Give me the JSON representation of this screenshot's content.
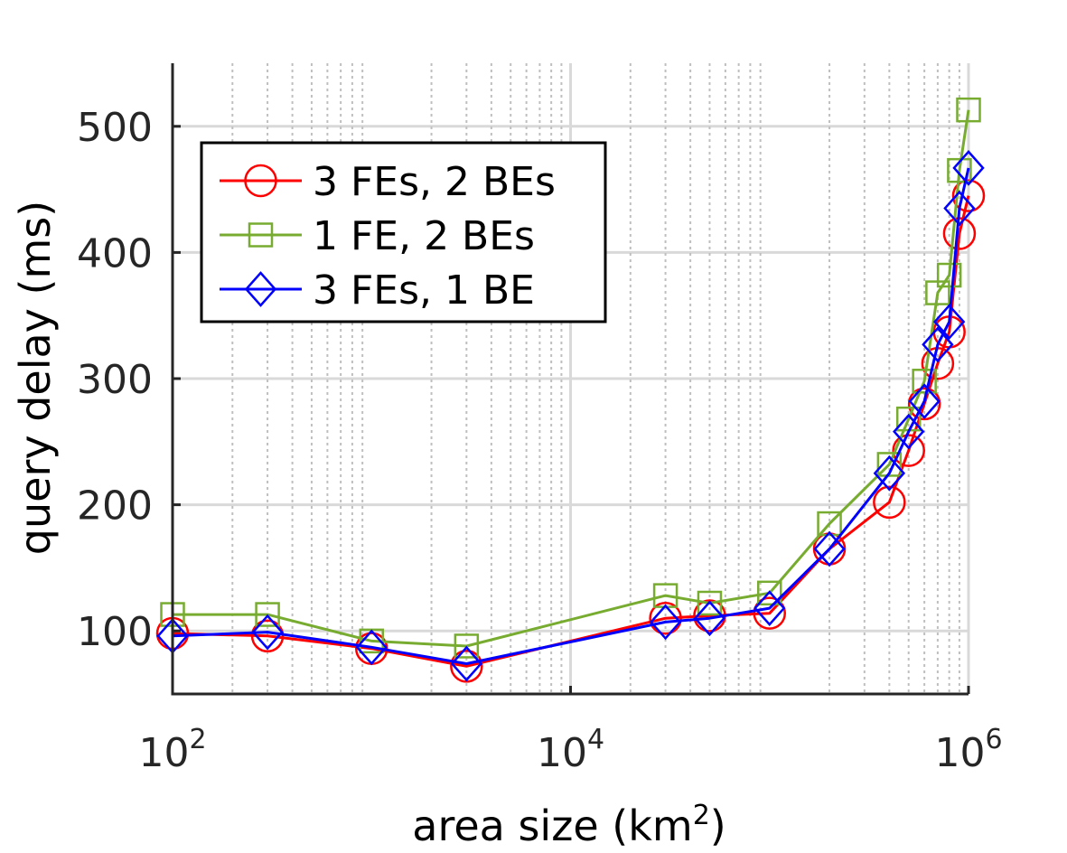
{
  "chart_data": {
    "type": "line",
    "xscale": "log",
    "xlabel": "area size (km",
    "xlabel_sup": "2",
    "xlabel_close": ")",
    "ylabel": "query delay (ms)",
    "xlim": [
      100,
      1000000
    ],
    "ylim": [
      50,
      550
    ],
    "xticks": [
      {
        "value": 100,
        "base": "10",
        "exp": "2"
      },
      {
        "value": 10000,
        "base": "10",
        "exp": "4"
      },
      {
        "value": 1000000,
        "base": "10",
        "exp": "6"
      }
    ],
    "yticks": [
      100,
      200,
      300,
      400,
      500
    ],
    "grid": true,
    "legend_position": "top-left",
    "series": [
      {
        "name": "3 FEs, 2 BEs",
        "color": "#ff0000",
        "marker": "circle",
        "x": [
          100,
          300,
          1000,
          3000,
          30000,
          50000,
          100000,
          200000,
          400000,
          500000,
          600000,
          700000,
          800000,
          900000,
          1000000
        ],
        "y": [
          98,
          96,
          86,
          72,
          110,
          112,
          114,
          165,
          202,
          243,
          280,
          312,
          337,
          415,
          445
        ]
      },
      {
        "name": "1 FE, 2 BEs",
        "color": "#77ac30",
        "marker": "square",
        "x": [
          100,
          300,
          1000,
          3000,
          30000,
          50000,
          100000,
          200000,
          400000,
          500000,
          600000,
          700000,
          800000,
          900000,
          1000000
        ],
        "y": [
          113,
          113,
          92,
          88,
          128,
          122,
          130,
          185,
          232,
          268,
          298,
          368,
          382,
          465,
          513
        ]
      },
      {
        "name": "3 FEs, 1 BE",
        "color": "#0000ff",
        "marker": "diamond",
        "x": [
          100,
          300,
          1000,
          3000,
          30000,
          50000,
          100000,
          200000,
          400000,
          500000,
          600000,
          700000,
          800000,
          900000,
          1000000
        ],
        "y": [
          96,
          99,
          87,
          74,
          107,
          110,
          118,
          165,
          225,
          258,
          282,
          327,
          345,
          435,
          467
        ]
      }
    ]
  }
}
